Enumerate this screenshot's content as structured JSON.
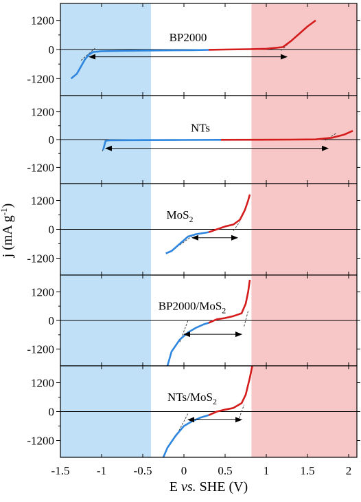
{
  "chart_data": {
    "type": "line",
    "layout": "stacked-panels",
    "shared_x": {
      "label": "E vs. SHE (V)",
      "label_parts": [
        {
          "text": "E ",
          "italic": false
        },
        {
          "text": "vs.",
          "italic": true
        },
        {
          "text": " SHE (V)",
          "italic": false
        }
      ],
      "range": [
        -1.5,
        2.1
      ],
      "ticks": [
        -1.5,
        -1.0,
        -0.5,
        0,
        0.5,
        1.0,
        1.5,
        2.0
      ],
      "tick_labels": [
        "-1.5",
        "-1",
        "-0.5",
        "0",
        "0.5",
        "1",
        "1.5",
        "2"
      ]
    },
    "shared_y": {
      "label": "j (mA g",
      "label_sup": "-1",
      "label_end": ")",
      "range": [
        -1900,
        1900
      ],
      "ticks": [
        -1200,
        0,
        1200
      ],
      "tick_labels": [
        "-1200",
        "0",
        "1200"
      ]
    },
    "shaded_regions": [
      {
        "x": [
          -1.5,
          -0.4
        ],
        "color": "#bfe0f7"
      },
      {
        "x": [
          0.82,
          2.1
        ],
        "color": "#f7c6c6"
      }
    ],
    "colors": {
      "cathodic": "#2e86de",
      "anodic": "#d41c1c",
      "axis": "#000000"
    },
    "panels": [
      {
        "label": "BP2000",
        "label_sub": "",
        "label_pos": [
          0.05,
          340
        ],
        "cathodic": [
          [
            -1.37,
            -1200
          ],
          [
            -1.3,
            -1000
          ],
          [
            -1.25,
            -700
          ],
          [
            -1.2,
            -400
          ],
          [
            -1.15,
            -200
          ],
          [
            -1.1,
            -100
          ],
          [
            -1.0,
            -75
          ],
          [
            -0.8,
            -60
          ],
          [
            -0.5,
            -45
          ],
          [
            -0.2,
            -35
          ],
          [
            0.1,
            -25
          ],
          [
            0.3,
            -15
          ]
        ],
        "anodic": [
          [
            0.3,
            -10
          ],
          [
            0.5,
            0
          ],
          [
            0.8,
            15
          ],
          [
            1.0,
            30
          ],
          [
            1.2,
            100
          ],
          [
            1.3,
            350
          ],
          [
            1.4,
            650
          ],
          [
            1.5,
            950
          ],
          [
            1.6,
            1200
          ]
        ],
        "tangents": [
          [
            [
              -1.25,
              -450
            ],
            [
              -1.08,
              50
            ]
          ],
          [
            [
              1.18,
              -40
            ],
            [
              1.28,
              280
            ]
          ]
        ],
        "arrow": [
          -1.15,
          1.25,
          -300
        ]
      },
      {
        "label": "NTs",
        "label_sub": "",
        "label_pos": [
          0.2,
          340
        ],
        "cathodic": [
          [
            -0.98,
            -450
          ],
          [
            -0.97,
            -300
          ],
          [
            -0.95,
            -50
          ],
          [
            -0.9,
            -30
          ],
          [
            -0.5,
            -20
          ],
          [
            0,
            -15
          ],
          [
            0.45,
            -10
          ]
        ],
        "anodic": [
          [
            0.45,
            -10
          ],
          [
            0.9,
            -5
          ],
          [
            1.3,
            0
          ],
          [
            1.6,
            10
          ],
          [
            1.8,
            80
          ],
          [
            1.95,
            220
          ],
          [
            2.05,
            380
          ]
        ],
        "tangents": [
          [
            [
              -0.99,
              -500
            ],
            [
              -0.95,
              60
            ]
          ],
          [
            [
              1.72,
              -30
            ],
            [
              1.85,
              280
            ]
          ]
        ],
        "arrow": [
          -0.95,
          1.75,
          -380
        ]
      },
      {
        "label": "MoS",
        "label_sub": "2",
        "label_pos": [
          -0.05,
          440
        ],
        "cathodic": [
          [
            -0.22,
            -1000
          ],
          [
            -0.15,
            -900
          ],
          [
            -0.05,
            -600
          ],
          [
            0.05,
            -300
          ],
          [
            0.15,
            -200
          ],
          [
            0.3,
            -120
          ]
        ],
        "anodic": [
          [
            0.3,
            -120
          ],
          [
            0.4,
            0
          ],
          [
            0.5,
            120
          ],
          [
            0.6,
            200
          ],
          [
            0.68,
            400
          ],
          [
            0.74,
            800
          ],
          [
            0.78,
            1200
          ],
          [
            0.8,
            1450
          ]
        ],
        "tangents": [
          [
            [
              -0.05,
              -650
            ],
            [
              0.15,
              -150
            ]
          ],
          [
            [
              0.6,
              -60
            ],
            [
              0.68,
              320
            ]
          ]
        ],
        "arrow": [
          0.1,
          0.65,
          -350
        ]
      },
      {
        "label": "BP2000/MoS",
        "label_sub": "2",
        "label_pos": [
          0.1,
          440
        ],
        "cathodic": [
          [
            -0.2,
            -1900
          ],
          [
            -0.15,
            -1300
          ],
          [
            -0.05,
            -800
          ],
          [
            0.05,
            -500
          ],
          [
            0.15,
            -300
          ],
          [
            0.25,
            -150
          ],
          [
            0.3,
            -100
          ]
        ],
        "anodic": [
          [
            0.3,
            -100
          ],
          [
            0.4,
            50
          ],
          [
            0.5,
            100
          ],
          [
            0.6,
            180
          ],
          [
            0.7,
            300
          ],
          [
            0.75,
            700
          ],
          [
            0.78,
            1200
          ],
          [
            0.8,
            1700
          ]
        ],
        "tangents": [
          [
            [
              -0.05,
              -900
            ],
            [
              0.05,
              0
            ]
          ],
          [
            [
              0.73,
              -250
            ],
            [
              0.78,
              400
            ]
          ]
        ],
        "arrow": [
          0.0,
          0.7,
          -580
        ]
      },
      {
        "label": "NTs/MoS",
        "label_sub": "2",
        "label_pos": [
          0.1,
          440
        ],
        "cathodic": [
          [
            -0.25,
            -1900
          ],
          [
            -0.2,
            -1500
          ],
          [
            -0.1,
            -1000
          ],
          [
            0.0,
            -600
          ],
          [
            0.1,
            -400
          ],
          [
            0.2,
            -250
          ],
          [
            0.3,
            -150
          ]
        ],
        "anodic": [
          [
            0.3,
            -150
          ],
          [
            0.4,
            0
          ],
          [
            0.5,
            80
          ],
          [
            0.6,
            150
          ],
          [
            0.7,
            350
          ],
          [
            0.75,
            700
          ],
          [
            0.8,
            1400
          ],
          [
            0.83,
            1900
          ]
        ],
        "tangents": [
          [
            [
              -0.1,
              -1050
            ],
            [
              0.05,
              -80
            ]
          ],
          [
            [
              0.67,
              -280
            ],
            [
              0.73,
              280
            ]
          ]
        ],
        "arrow": [
          0.05,
          0.7,
          -340
        ]
      }
    ]
  }
}
